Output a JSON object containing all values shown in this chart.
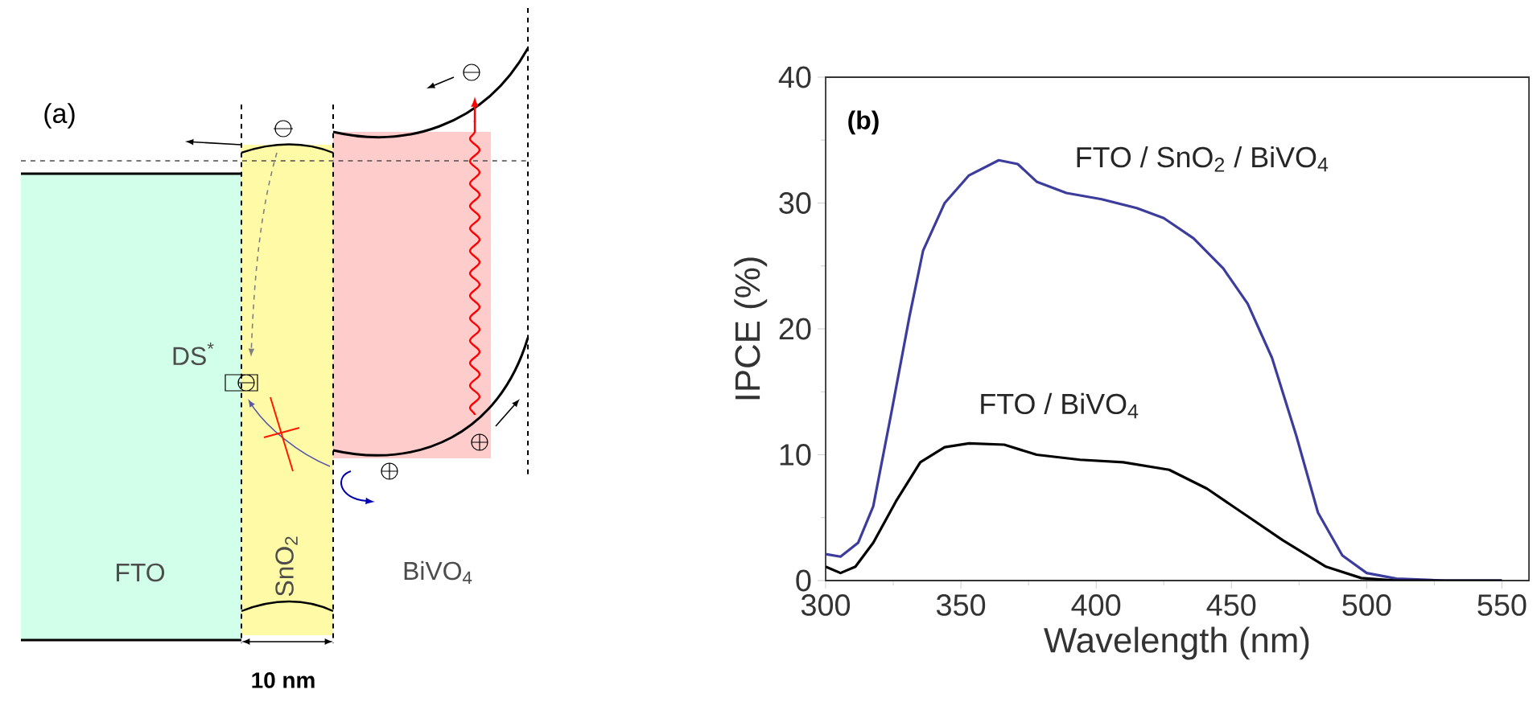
{
  "chart_data": [
    {
      "type": "other",
      "annotations": [
        "(a)",
        "FTO",
        "SnO$_{2}$",
        "BiVO$_{4}$",
        "DS$^{*}$",
        "10 nm"
      ]
    },
    {
      "type": "line",
      "xlabel": "Wavelength (nm)",
      "ylabel": "IPCE (%)",
      "annotations": [
        "(b)"
      ],
      "xlim": [
        300,
        560
      ],
      "ylim": [
        0,
        40
      ],
      "xticks": [
        300,
        350,
        400,
        450,
        500,
        550
      ],
      "yticks": [
        0,
        10,
        20,
        30,
        40
      ],
      "series": [
        {
          "name": "FTO / SnO$_{2}$ / BiVO$_{4}$",
          "color": "#3c3c9c",
          "x": [
            300,
            305.5,
            312,
            317.6,
            324,
            331,
            336,
            344,
            353,
            364,
            371,
            378,
            389,
            402,
            415,
            425,
            436,
            447,
            456,
            465,
            474,
            482,
            491,
            500,
            511,
            529,
            550
          ],
          "values": [
            2.1,
            1.9,
            3.0,
            5.9,
            13,
            21,
            26.2,
            30,
            32.2,
            33.4,
            33.1,
            31.7,
            30.8,
            30.3,
            29.6,
            28.8,
            27.2,
            24.8,
            22,
            17.7,
            11.5,
            5.4,
            2.0,
            0.6,
            0.15,
            0,
            0
          ]
        },
        {
          "name": "FTO / BiVO$_{4}$",
          "color": "#000000",
          "x": [
            300,
            305.5,
            311,
            317.6,
            326,
            335,
            344,
            353,
            366,
            378,
            394,
            410,
            427,
            441,
            454,
            469,
            485,
            498,
            511,
            550
          ],
          "values": [
            1.1,
            0.6,
            1.1,
            3.0,
            6.3,
            9.4,
            10.6,
            10.9,
            10.8,
            10,
            9.6,
            9.4,
            8.8,
            7.3,
            5.4,
            3.2,
            1.1,
            0.2,
            0,
            0
          ]
        }
      ]
    }
  ]
}
